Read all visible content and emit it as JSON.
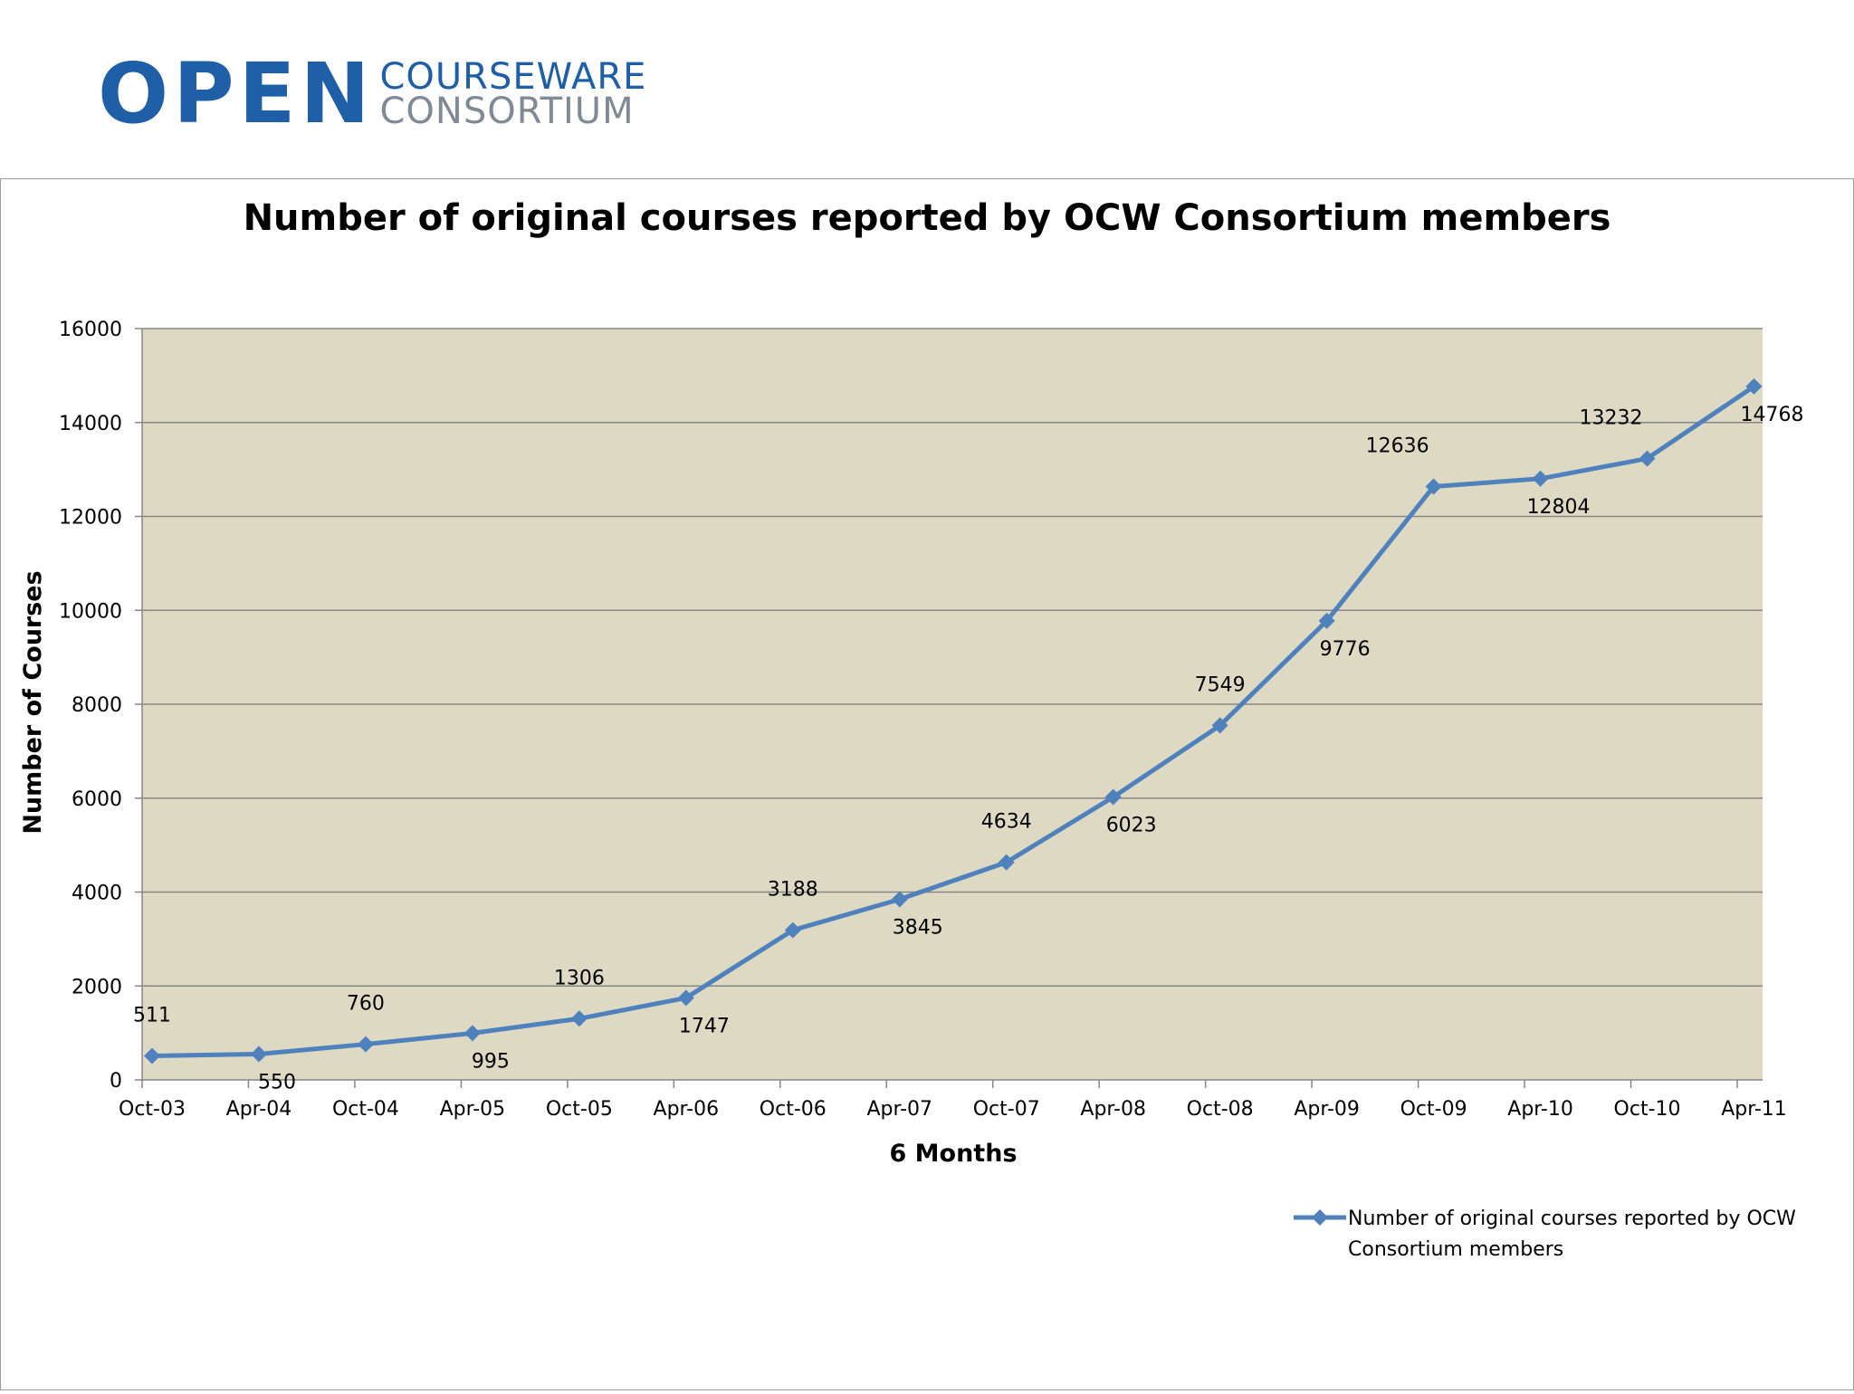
{
  "logo": {
    "word": "OPEN",
    "line1": "COURSEWARE",
    "line2": "CONSORTIUM"
  },
  "colors": {
    "series": "#4f81bd",
    "plot_bg": "#ddd9c3",
    "brand": "#1f5fa8"
  },
  "chart_data": {
    "type": "line",
    "title": "Number of original courses reported by OCW Consortium members",
    "xlabel": "6 Months",
    "ylabel": "Number of Courses",
    "ylim": [
      0,
      16000
    ],
    "yticks": [
      0,
      2000,
      4000,
      6000,
      8000,
      10000,
      12000,
      14000,
      16000
    ],
    "grid": true,
    "legend_position": "bottom-right",
    "categories": [
      "Oct-03",
      "Apr-04",
      "Oct-04",
      "Apr-05",
      "Oct-05",
      "Apr-06",
      "Oct-06",
      "Apr-07",
      "Oct-07",
      "Apr-08",
      "Oct-08",
      "Apr-09",
      "Oct-09",
      "Apr-10",
      "Oct-10",
      "Apr-11"
    ],
    "series": [
      {
        "name": "Number of original courses reported by OCW Consortium members",
        "legend_lines": [
          "Number of original courses reported by OCW",
          "Consortium members"
        ],
        "values": [
          511,
          550,
          760,
          995,
          1306,
          1747,
          3188,
          3845,
          4634,
          6023,
          7549,
          9776,
          12636,
          12804,
          13232,
          14768
        ],
        "label_placement": [
          "above",
          "below",
          "above",
          "below",
          "above",
          "below",
          "above",
          "below",
          "above",
          "below",
          "above",
          "below",
          "above",
          "below",
          "above",
          "below"
        ]
      }
    ]
  }
}
